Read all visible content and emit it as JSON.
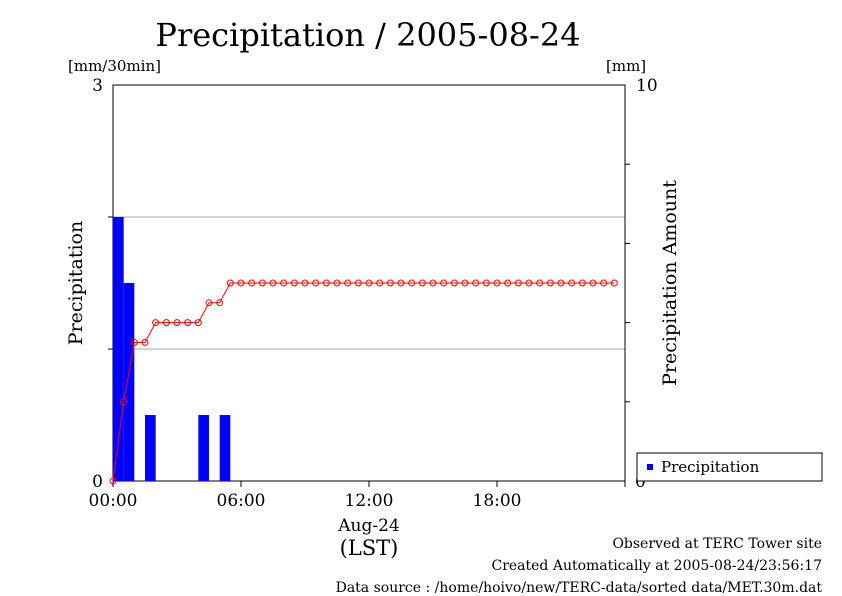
{
  "chart_data": {
    "type": "bar",
    "title": "Precipitation / 2005-08-24",
    "ylabel_left": "Precipitation",
    "ylabel_right": "Precipitation Amount",
    "left_unit": "[mm/30min]",
    "right_unit": "[mm]",
    "left_ylim": [
      0,
      3
    ],
    "right_ylim": [
      0,
      10
    ],
    "left_ticks": [
      "0",
      "3"
    ],
    "right_ticks": [
      "0",
      "10"
    ],
    "x_date": "Aug-24",
    "x_timezone": "(LST)",
    "x_ticks": [
      "00:00",
      "06:00",
      "12:00",
      "18:00"
    ],
    "x_range_hours": [
      0,
      23.5
    ],
    "grid": "horizontal",
    "legend": {
      "position": "bottom-right",
      "entries": [
        "Precipitation"
      ]
    },
    "bar_color": "#0000ff",
    "line_color": "#ff0000",
    "series": [
      {
        "name": "Precipitation",
        "kind": "bar",
        "axis": "left",
        "x": [
          0.0,
          0.5,
          1.5,
          4.0,
          5.0
        ],
        "values": [
          2.0,
          1.5,
          0.5,
          0.5,
          0.5
        ]
      },
      {
        "kind": "line",
        "axis": "right",
        "x": [
          0.0,
          0.5,
          1.0,
          1.5,
          2.0,
          2.5,
          3.0,
          3.5,
          4.0,
          4.5,
          5.0,
          5.5,
          6.0,
          6.5,
          7.0,
          7.5,
          8.0,
          8.5,
          9.0,
          9.5,
          10.0,
          10.5,
          11.0,
          11.5,
          12.0,
          12.5,
          13.0,
          13.5,
          14.0,
          14.5,
          15.0,
          15.5,
          16.0,
          16.5,
          17.0,
          17.5,
          18.0,
          18.5,
          19.0,
          19.5,
          20.0,
          20.5,
          21.0,
          21.5,
          22.0,
          22.5,
          23.0,
          23.5
        ],
        "values": [
          0.0,
          2.0,
          3.5,
          3.5,
          4.0,
          4.0,
          4.0,
          4.0,
          4.0,
          4.5,
          4.5,
          5.0,
          5.0,
          5.0,
          5.0,
          5.0,
          5.0,
          5.0,
          5.0,
          5.0,
          5.0,
          5.0,
          5.0,
          5.0,
          5.0,
          5.0,
          5.0,
          5.0,
          5.0,
          5.0,
          5.0,
          5.0,
          5.0,
          5.0,
          5.0,
          5.0,
          5.0,
          5.0,
          5.0,
          5.0,
          5.0,
          5.0,
          5.0,
          5.0,
          5.0,
          5.0,
          5.0,
          5.0
        ]
      }
    ]
  },
  "footer": {
    "line1": "Observed at TERC Tower site",
    "line2": "Created Automatically at 2005-08-24/23:56:17",
    "line3": "Data source : /home/hoivo/new/TERC-data/sorted  data/MET.30m.dat"
  }
}
